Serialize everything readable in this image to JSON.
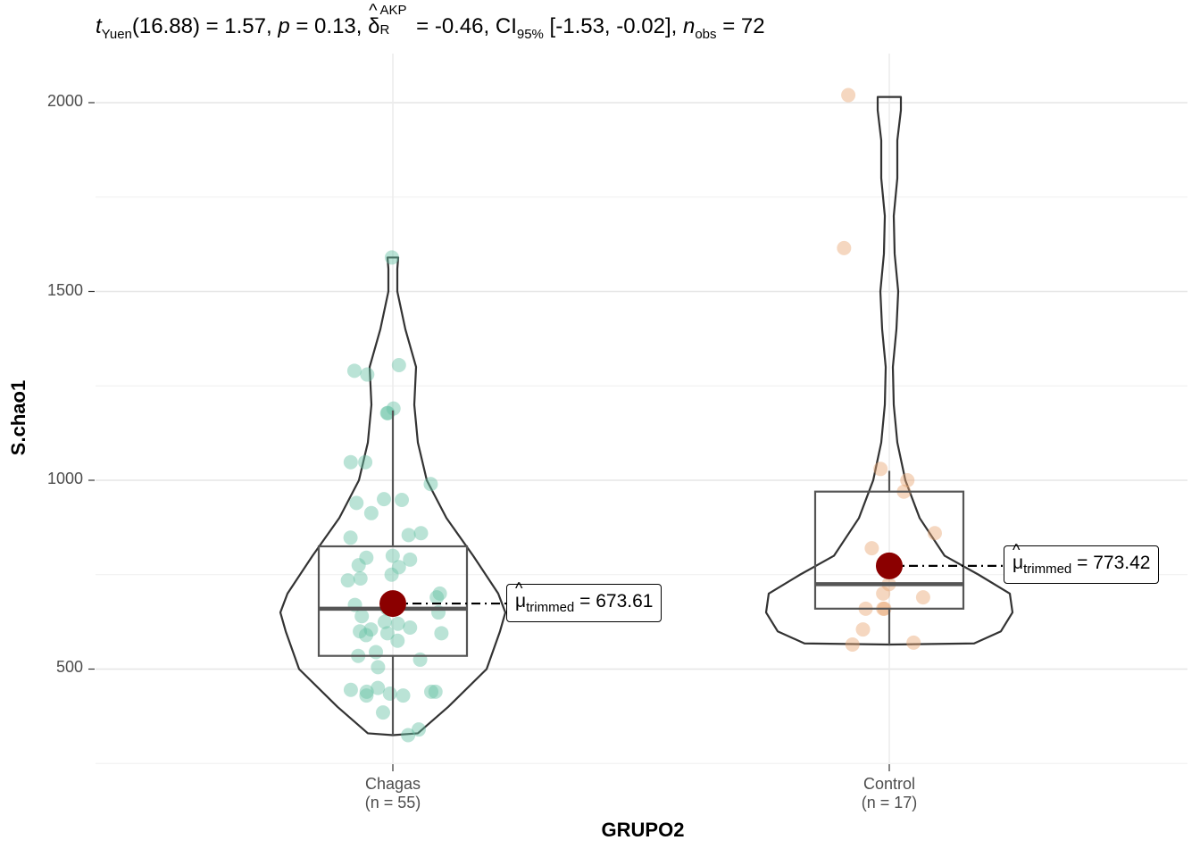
{
  "title": {
    "stat_symbol": "t",
    "stat_sub": "Yuen",
    "stat_part": "(16.88) = 1.57, ",
    "p_symbol": "p",
    "p_part": " = 0.13, ",
    "effect_symbol": "δ",
    "effect_sup": "AKP",
    "effect_sub": "R",
    "effect_part": " = -0.46, CI",
    "ci_sub": "95%",
    "ci_part": " [-1.53, -0.02], ",
    "n_symbol": "n",
    "n_sub": "obs",
    "n_part": " = 72"
  },
  "axes": {
    "ylabel": "S.chao1",
    "xlabel": "GRUPO2",
    "yticks": [
      "2000",
      "1500",
      "1000",
      "500"
    ]
  },
  "chart_data": {
    "type": "violin-box-scatter",
    "categories": [
      "Chagas",
      "Control"
    ],
    "category_counts": [
      "(n = 55)",
      "(n = 17)"
    ],
    "ylim": [
      250,
      2150
    ],
    "grid": true,
    "colors": {
      "Chagas": "#66c2a5",
      "Control": "#e8a673",
      "mean_point": "#8b0000",
      "box": "#555555",
      "violin": "#333333"
    },
    "groups": [
      {
        "name": "Chagas",
        "trimmed_mean": 673.61,
        "trimmed_mean_label": "= 673.61",
        "box": {
          "q1": 535,
          "median": 660,
          "q3": 825,
          "whisker_low": 325,
          "whisker_high": 1185
        },
        "violin_range": [
          325,
          1590
        ],
        "points": [
          1590,
          1305,
          1290,
          1280,
          1178,
          1190,
          1048,
          990,
          948,
          950,
          913,
          860,
          855,
          848,
          800,
          795,
          790,
          775,
          770,
          750,
          740,
          735,
          690,
          700,
          670,
          660,
          650,
          640,
          625,
          620,
          610,
          605,
          600,
          595,
          595,
          590,
          575,
          545,
          535,
          525,
          505,
          450,
          445,
          440,
          440,
          440,
          435,
          430,
          430,
          385,
          340,
          325,
          940,
          1048,
          1178
        ]
      },
      {
        "name": "Control",
        "trimmed_mean": 773.42,
        "trimmed_mean_label": "= 773.42",
        "box": {
          "q1": 660,
          "median": 725,
          "q3": 970,
          "whisker_low": 565,
          "whisker_high": 1025
        },
        "violin_range": [
          565,
          2015
        ],
        "points": [
          2020,
          1615,
          1030,
          1000,
          970,
          860,
          820,
          780,
          725,
          700,
          690,
          660,
          660,
          660,
          605,
          570,
          565
        ]
      }
    ]
  }
}
